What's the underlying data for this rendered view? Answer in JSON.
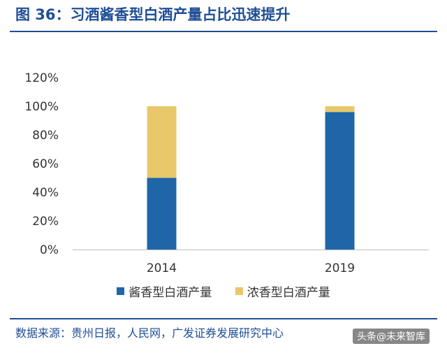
{
  "title": "图 36：习酒酱香型白酒产量占比迅速提升",
  "source": "数据来源：贵州日报，人民网，广发证券发展研究中心",
  "watermark": "头条@未来智库",
  "colors": {
    "title": "#1f4e96",
    "series1": "#1f66a8",
    "series2": "#e8c86a"
  },
  "chart_data": {
    "type": "bar",
    "stacked": true,
    "categories": [
      "2014",
      "2019"
    ],
    "series": [
      {
        "name": "酱香型白酒产量",
        "values": [
          50,
          96
        ]
      },
      {
        "name": "浓香型白酒产量",
        "values": [
          50,
          4
        ]
      }
    ],
    "ylim": [
      0,
      120
    ],
    "yticks": [
      0,
      20,
      40,
      60,
      80,
      100,
      120
    ],
    "ytick_labels": [
      "0%",
      "20%",
      "40%",
      "60%",
      "80%",
      "100%",
      "120%"
    ],
    "grid": false,
    "legend": "bottom"
  }
}
